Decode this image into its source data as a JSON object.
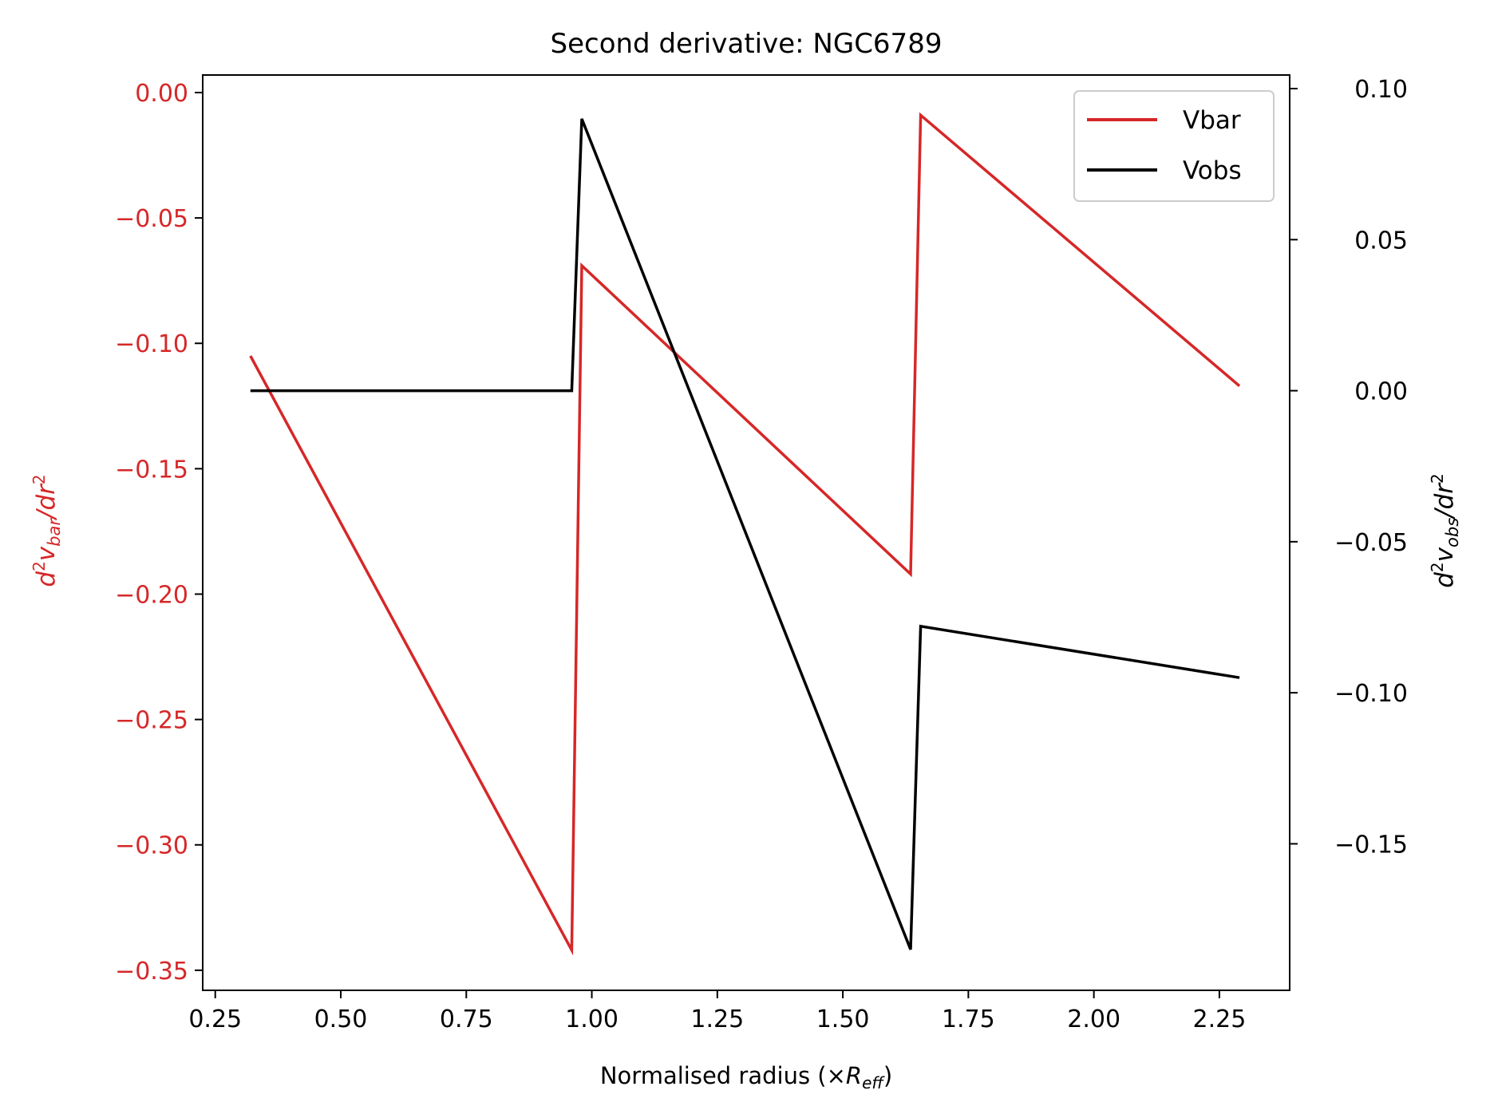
{
  "chart_data": {
    "type": "line",
    "title": "Second derivative: NGC6789",
    "xlabel": {
      "main": "Normalised radius (×",
      "symbol": "R",
      "sub": "eff",
      "close": ")"
    },
    "ylabel_left": {
      "pre": "d",
      "sup": "2",
      "v": "v",
      "sub": "bar",
      "post": "/dr",
      "sup2": "2"
    },
    "ylabel_right": {
      "pre": "d",
      "sup": "2",
      "v": "v",
      "sub": "obs",
      "post": "/dr",
      "sup2": "2"
    },
    "xlim": [
      0.225,
      2.39
    ],
    "ylim_left": [
      -0.358,
      0.007
    ],
    "ylim_right": [
      -0.1985,
      0.1045
    ],
    "x_ticks": [
      0.25,
      0.5,
      0.75,
      1.0,
      1.25,
      1.5,
      1.75,
      2.0,
      2.25
    ],
    "x_tick_labels": [
      "0.25",
      "0.50",
      "0.75",
      "1.00",
      "1.25",
      "1.50",
      "1.75",
      "2.00",
      "2.25"
    ],
    "y_left_ticks": [
      0.0,
      -0.05,
      -0.1,
      -0.15,
      -0.2,
      -0.25,
      -0.3,
      -0.35
    ],
    "y_left_tick_labels": [
      "0.00",
      "−0.05",
      "−0.10",
      "−0.15",
      "−0.20",
      "−0.25",
      "−0.30",
      "−0.35"
    ],
    "y_right_ticks": [
      0.1,
      0.05,
      0.0,
      -0.05,
      -0.1,
      -0.15
    ],
    "y_right_tick_labels": [
      "0.10",
      "0.05",
      "0.00",
      "−0.05",
      "−0.10",
      "−0.15"
    ],
    "legend_position": "top-right",
    "grid": false,
    "series": [
      {
        "name": "Vbar",
        "axis": "left",
        "color": "#d62728",
        "x": [
          0.32,
          0.96,
          0.98,
          1.635,
          1.655,
          2.29
        ],
        "y": [
          -0.105,
          -0.342,
          -0.069,
          -0.192,
          -0.009,
          -0.117
        ]
      },
      {
        "name": "Vobs",
        "axis": "right",
        "color": "#000000",
        "x": [
          0.32,
          0.96,
          0.98,
          1.635,
          1.655,
          2.29
        ],
        "y": [
          0.0,
          0.0,
          0.09,
          -0.185,
          -0.078,
          -0.095
        ]
      }
    ],
    "colors": {
      "left_axis": "#d62728",
      "right_axis": "#000000"
    }
  }
}
